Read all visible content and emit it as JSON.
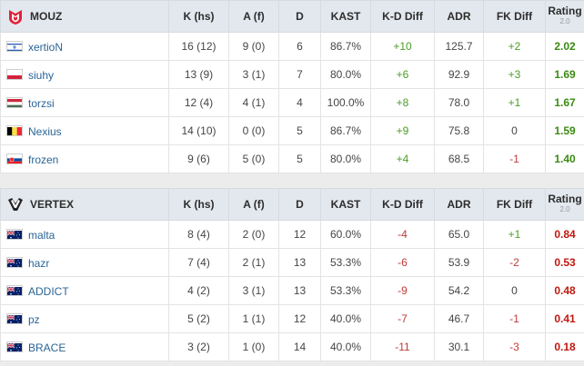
{
  "headers": {
    "k": "K (hs)",
    "a": "A (f)",
    "d": "D",
    "kast": "KAST",
    "kddiff": "K-D Diff",
    "adr": "ADR",
    "fkdiff": "FK Diff",
    "rating": "Rating",
    "rating_sub": "2.0"
  },
  "teams": [
    {
      "name": "MOUZ",
      "logo_icon": "mouz-logo-icon",
      "players": [
        {
          "name": "xertioN",
          "flag": "israel-flag-icon",
          "k": "16 (12)",
          "a": "9 (0)",
          "d": "6",
          "kast": "86.7%",
          "kd": "+10",
          "adr": "125.7",
          "fk": "+2",
          "rating": "2.02"
        },
        {
          "name": "siuhy",
          "flag": "poland-flag-icon",
          "k": "13 (9)",
          "a": "3 (1)",
          "d": "7",
          "kast": "80.0%",
          "kd": "+6",
          "adr": "92.9",
          "fk": "+3",
          "rating": "1.69"
        },
        {
          "name": "torzsi",
          "flag": "hungary-flag-icon",
          "k": "12 (4)",
          "a": "4 (1)",
          "d": "4",
          "kast": "100.0%",
          "kd": "+8",
          "adr": "78.0",
          "fk": "+1",
          "rating": "1.67"
        },
        {
          "name": "Nexius",
          "flag": "belgium-flag-icon",
          "k": "14 (10)",
          "a": "0 (0)",
          "d": "5",
          "kast": "86.7%",
          "kd": "+9",
          "adr": "75.8",
          "fk": "0",
          "rating": "1.59"
        },
        {
          "name": "frozen",
          "flag": "slovakia-flag-icon",
          "k": "9 (6)",
          "a": "5 (0)",
          "d": "5",
          "kast": "80.0%",
          "kd": "+4",
          "adr": "68.5",
          "fk": "-1",
          "rating": "1.40"
        }
      ]
    },
    {
      "name": "VERTEX",
      "logo_icon": "vertex-logo-icon",
      "players": [
        {
          "name": "malta",
          "flag": "australia-flag-icon",
          "k": "8 (4)",
          "a": "2 (0)",
          "d": "12",
          "kast": "60.0%",
          "kd": "-4",
          "adr": "65.0",
          "fk": "+1",
          "rating": "0.84"
        },
        {
          "name": "hazr",
          "flag": "australia-flag-icon",
          "k": "7 (4)",
          "a": "2 (1)",
          "d": "13",
          "kast": "53.3%",
          "kd": "-6",
          "adr": "53.9",
          "fk": "-2",
          "rating": "0.53"
        },
        {
          "name": "ADDICT",
          "flag": "australia-flag-icon",
          "k": "4 (2)",
          "a": "3 (1)",
          "d": "13",
          "kast": "53.3%",
          "kd": "-9",
          "adr": "54.2",
          "fk": "0",
          "rating": "0.48"
        },
        {
          "name": "pz",
          "flag": "australia-flag-icon",
          "k": "5 (2)",
          "a": "1 (1)",
          "d": "12",
          "kast": "40.0%",
          "kd": "-7",
          "adr": "46.7",
          "fk": "-1",
          "rating": "0.41"
        },
        {
          "name": "BRACE",
          "flag": "australia-flag-icon",
          "k": "3 (2)",
          "a": "1 (0)",
          "d": "14",
          "kast": "40.0%",
          "kd": "-11",
          "adr": "30.1",
          "fk": "-3",
          "rating": "0.18"
        }
      ]
    }
  ],
  "colors": {
    "positive": "#4a9d25",
    "negative": "#c03b3b",
    "link": "#2a6496",
    "header_bg": "#e3e8ee"
  }
}
